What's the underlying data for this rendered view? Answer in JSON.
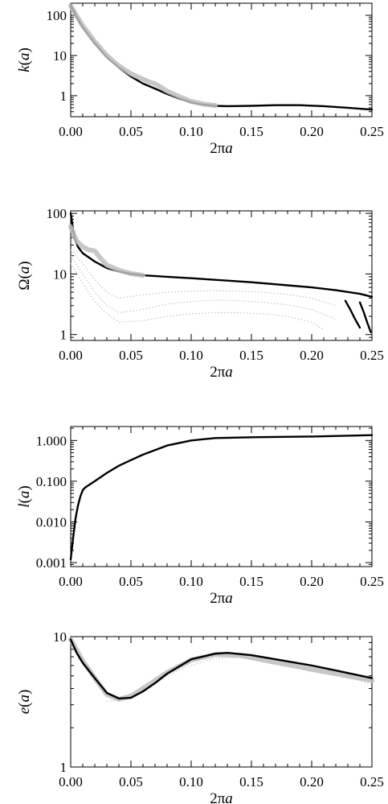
{
  "chart_data": [
    {
      "type": "line",
      "id": "k",
      "ylabel": "k(a)",
      "xlabel": "2πa",
      "yscale": "log",
      "xlim": [
        0.0,
        0.25
      ],
      "ylim": [
        0.3,
        200
      ],
      "xticks": [
        "0.00",
        "0.05",
        "0.10",
        "0.15",
        "0.20",
        "0.25"
      ],
      "yticks": [
        "1",
        "10",
        "100"
      ],
      "series": [
        {
          "style": "main",
          "x": [
            0.0,
            0.005,
            0.01,
            0.02,
            0.03,
            0.04,
            0.05,
            0.06,
            0.07,
            0.08,
            0.09,
            0.1,
            0.11,
            0.12,
            0.13,
            0.15,
            0.17,
            0.19,
            0.21,
            0.23,
            0.25
          ],
          "y": [
            180,
            90,
            50,
            20,
            9,
            5,
            3,
            2,
            1.5,
            1.1,
            0.85,
            0.68,
            0.6,
            0.56,
            0.55,
            0.56,
            0.58,
            0.58,
            0.55,
            0.5,
            0.45
          ]
        },
        {
          "style": "scatter",
          "x": [
            0.0,
            0.01,
            0.02,
            0.03,
            0.04,
            0.05,
            0.06,
            0.065,
            0.07,
            0.08,
            0.09,
            0.1,
            0.11,
            0.12
          ],
          "y": [
            170,
            55,
            22,
            10,
            5.5,
            3.5,
            2.6,
            2.2,
            2.0,
            1.3,
            0.95,
            0.72,
            0.62,
            0.57
          ]
        }
      ]
    },
    {
      "type": "line",
      "id": "omega",
      "ylabel": "Ω(a)",
      "xlabel": "2πa",
      "yscale": "log",
      "xlim": [
        0.0,
        0.25
      ],
      "ylim": [
        0.8,
        110
      ],
      "xticks": [
        "0.00",
        "0.05",
        "0.10",
        "0.15",
        "0.20",
        "0.25"
      ],
      "yticks": [
        "1",
        "10",
        "100"
      ],
      "series": [
        {
          "style": "main",
          "x": [
            0.0,
            0.003,
            0.006,
            0.01,
            0.02,
            0.03,
            0.04,
            0.05,
            0.06,
            0.08,
            0.1,
            0.12,
            0.15,
            0.18,
            0.2,
            0.22,
            0.24,
            0.25
          ],
          "y": [
            100,
            40,
            28,
            22,
            16,
            12.5,
            11,
            10,
            9.5,
            9.0,
            8.5,
            8.0,
            7.3,
            6.5,
            6.0,
            5.4,
            4.7,
            4.2
          ]
        },
        {
          "style": "scatter",
          "x": [
            0.0,
            0.005,
            0.01,
            0.015,
            0.02,
            0.025,
            0.03,
            0.04,
            0.05,
            0.06
          ],
          "y": [
            60,
            35,
            28,
            25,
            24,
            18,
            14,
            11.5,
            10.2,
            9.5
          ]
        },
        {
          "style": "family",
          "x": [
            0.0,
            0.01,
            0.02,
            0.03,
            0.04,
            0.06,
            0.08,
            0.1,
            0.12,
            0.14,
            0.16,
            0.18,
            0.2,
            0.22
          ],
          "y": [
            25,
            15,
            8,
            5,
            4,
            4.5,
            5,
            5.2,
            5.3,
            5.2,
            5.0,
            4.6,
            4.0,
            3.0
          ]
        },
        {
          "style": "family",
          "x": [
            0.0,
            0.01,
            0.02,
            0.03,
            0.04,
            0.06,
            0.08,
            0.1,
            0.12,
            0.14,
            0.16,
            0.18,
            0.2,
            0.22
          ],
          "y": [
            20,
            10,
            5,
            3,
            2.3,
            2.6,
            3.2,
            3.5,
            3.7,
            3.6,
            3.4,
            3.1,
            2.6,
            1.8
          ]
        },
        {
          "style": "family",
          "x": [
            0.0,
            0.01,
            0.02,
            0.03,
            0.04,
            0.06,
            0.08,
            0.1,
            0.12,
            0.14,
            0.16,
            0.18,
            0.2,
            0.21
          ],
          "y": [
            15,
            7,
            3.5,
            2.2,
            1.6,
            1.7,
            2.0,
            2.2,
            2.3,
            2.3,
            2.2,
            2.0,
            1.6,
            1.2
          ]
        },
        {
          "style": "main",
          "x": [
            0.228,
            0.232,
            0.236,
            0.24
          ],
          "y": [
            3.6,
            2.6,
            1.8,
            1.3
          ]
        },
        {
          "style": "main",
          "x": [
            0.24,
            0.243,
            0.246,
            0.249
          ],
          "y": [
            3.4,
            2.4,
            1.6,
            1.1
          ]
        }
      ]
    },
    {
      "type": "line",
      "id": "l",
      "ylabel": "l(a)",
      "xlabel": "2πa",
      "yscale": "log",
      "xlim": [
        0.0,
        0.25
      ],
      "ylim": [
        0.0008,
        2.2
      ],
      "xticks": [
        "0.00",
        "0.05",
        "0.10",
        "0.15",
        "0.20",
        "0.25"
      ],
      "yticks": [
        "0.001",
        "0.010",
        "0.100",
        "1.000"
      ],
      "series": [
        {
          "style": "main",
          "x": [
            0.0,
            0.002,
            0.004,
            0.006,
            0.008,
            0.01,
            0.012,
            0.02,
            0.03,
            0.04,
            0.05,
            0.06,
            0.08,
            0.1,
            0.12,
            0.15,
            0.2,
            0.25
          ],
          "y": [
            0.0012,
            0.004,
            0.012,
            0.025,
            0.042,
            0.06,
            0.07,
            0.1,
            0.16,
            0.24,
            0.33,
            0.45,
            0.75,
            1.0,
            1.15,
            1.2,
            1.25,
            1.35
          ]
        }
      ]
    },
    {
      "type": "line",
      "id": "e",
      "ylabel": "e(a)",
      "xlabel": "2πa",
      "yscale": "log",
      "xlim": [
        0.0,
        0.25
      ],
      "ylim": [
        1,
        10
      ],
      "xticks": [
        "0.00",
        "0.05",
        "0.10",
        "0.15",
        "0.20",
        "0.25"
      ],
      "yticks": [
        "1",
        "10"
      ],
      "series": [
        {
          "style": "scatter",
          "x": [
            0.0,
            0.01,
            0.02,
            0.03,
            0.04,
            0.05,
            0.06,
            0.08,
            0.1,
            0.12,
            0.14,
            0.16,
            0.18,
            0.2,
            0.22,
            0.24,
            0.25
          ],
          "y": [
            9.5,
            6.5,
            4.8,
            3.6,
            3.3,
            3.5,
            4.0,
            5.3,
            6.6,
            7.3,
            7.2,
            6.6,
            6.1,
            5.6,
            5.2,
            4.8,
            4.6
          ]
        },
        {
          "style": "family",
          "x": [
            0.03,
            0.05,
            0.08,
            0.1,
            0.12,
            0.14,
            0.16,
            0.18,
            0.2,
            0.22,
            0.24,
            0.25
          ],
          "y": [
            3.2,
            3.3,
            5.0,
            6.0,
            6.8,
            6.9,
            6.5,
            6.0,
            5.5,
            5.0,
            4.6,
            4.3
          ]
        },
        {
          "style": "main",
          "x": [
            0.0,
            0.005,
            0.01,
            0.02,
            0.03,
            0.04,
            0.05,
            0.06,
            0.07,
            0.08,
            0.1,
            0.12,
            0.13,
            0.15,
            0.17,
            0.2,
            0.22,
            0.25
          ],
          "y": [
            9.5,
            7.5,
            6.3,
            4.8,
            3.7,
            3.35,
            3.4,
            3.8,
            4.4,
            5.2,
            6.7,
            7.4,
            7.5,
            7.2,
            6.7,
            6.0,
            5.5,
            4.8
          ]
        }
      ]
    }
  ]
}
